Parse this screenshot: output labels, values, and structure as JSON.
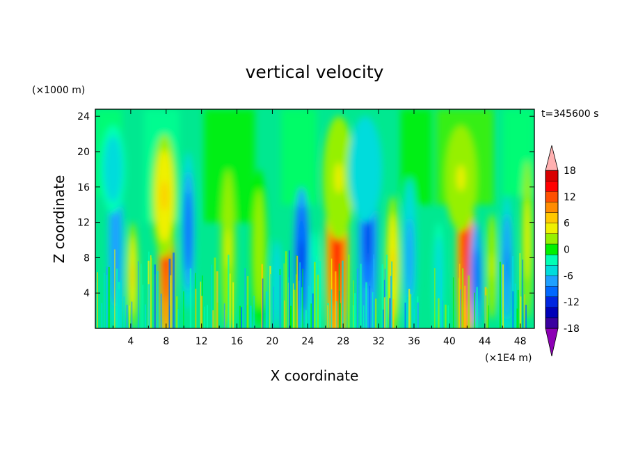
{
  "chart_data": {
    "type": "heatmap",
    "title": "vertical velocity",
    "xlabel": "X coordinate",
    "ylabel": "Z coordinate",
    "x_unit": "(×1E4 m)",
    "y_unit": "(×1000 m)",
    "time_label": "t=345600 s",
    "xlim": [
      0,
      49.6
    ],
    "ylim": [
      0,
      24.8
    ],
    "x_ticks": [
      4,
      8,
      12,
      16,
      20,
      24,
      28,
      32,
      36,
      40,
      44,
      48
    ],
    "y_ticks": [
      4,
      8,
      12,
      16,
      20,
      24
    ],
    "colorbar": {
      "levels": [
        -21,
        -18,
        -15,
        -12,
        -9,
        -6,
        -3,
        0,
        3,
        6,
        9,
        12,
        15,
        18,
        21
      ],
      "tick_labels": [
        "18",
        "12",
        "6",
        "0",
        "-6",
        "-12",
        "-18"
      ],
      "tick_values": [
        18,
        12,
        6,
        0,
        -6,
        -12,
        -18
      ],
      "colors": [
        "#7a00a8",
        "#3a00a0",
        "#0000b8",
        "#0026e0",
        "#0068ff",
        "#1ea0ff",
        "#00dcdc",
        "#00ffb4",
        "#00f000",
        "#96f000",
        "#f0f000",
        "#ffc800",
        "#ff8c00",
        "#ff5000",
        "#ff0000",
        "#d80000",
        "#ffb0b0"
      ],
      "over_color": "#ffb0b0",
      "under_color": "#8c00b4"
    },
    "features": [
      {
        "x": 8.0,
        "z": 8.0,
        "value": 20
      },
      {
        "x": 27.2,
        "z": 8.5,
        "value": 18
      },
      {
        "x": 41.8,
        "z": 9.0,
        "value": 18
      },
      {
        "x": 23.3,
        "z": 8.0,
        "value": -14
      },
      {
        "x": 30.8,
        "z": 10.0,
        "value": -13
      },
      {
        "x": 10.4,
        "z": 11.0,
        "value": -10
      },
      {
        "x": 2.5,
        "z": 9.0,
        "value": -9
      },
      {
        "x": 46.5,
        "z": 7.0,
        "value": -9
      }
    ]
  }
}
